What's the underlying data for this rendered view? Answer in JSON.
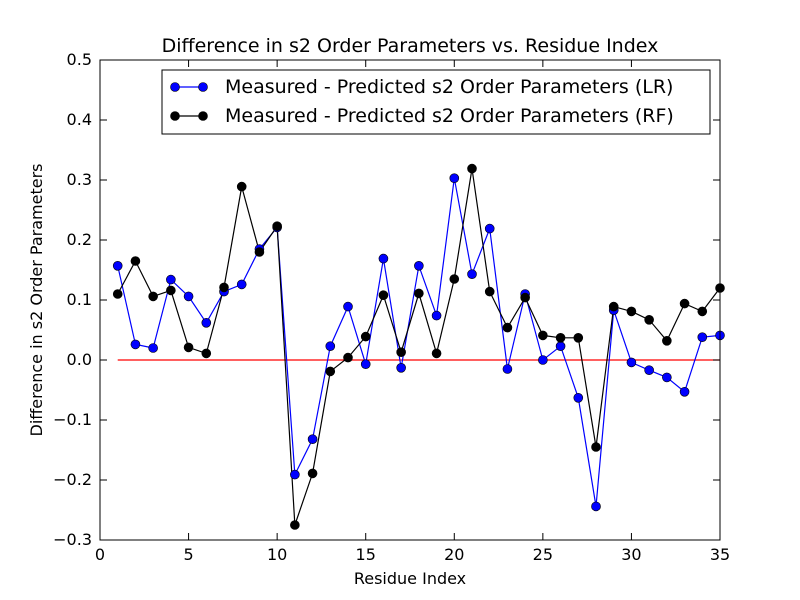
{
  "chart_data": {
    "type": "line",
    "title": "Difference in s2 Order Parameters vs. Residue Index",
    "xlabel": "Residue Index",
    "ylabel": "Difference in s2 Order Parameters",
    "xlim": [
      0,
      35
    ],
    "ylim": [
      -0.3,
      0.5
    ],
    "xticks": [
      0,
      5,
      10,
      15,
      20,
      25,
      30,
      35
    ],
    "yticks": [
      -0.3,
      -0.2,
      -0.1,
      0.0,
      0.1,
      0.2,
      0.3,
      0.4,
      0.5
    ],
    "xtick_labels": [
      "0",
      "5",
      "10",
      "15",
      "20",
      "25",
      "30",
      "35"
    ],
    "ytick_labels": [
      "−0.3",
      "−0.2",
      "−0.1",
      "0.0",
      "0.1",
      "0.2",
      "0.3",
      "0.4",
      "0.5"
    ],
    "grid": false,
    "legend_position": "top-right",
    "x": [
      1,
      2,
      3,
      4,
      5,
      6,
      7,
      8,
      9,
      10,
      11,
      12,
      13,
      14,
      15,
      16,
      17,
      18,
      19,
      20,
      21,
      22,
      23,
      24,
      25,
      26,
      27,
      28,
      29,
      30,
      31,
      32,
      33,
      34,
      35
    ],
    "series": [
      {
        "name": "Measured - Predicted s2 Order Parameters (LR)",
        "color": "#0000ff",
        "values": [
          0.157,
          0.026,
          0.02,
          0.134,
          0.106,
          0.062,
          0.114,
          0.126,
          0.185,
          0.221,
          -0.191,
          -0.132,
          0.023,
          0.089,
          -0.007,
          0.169,
          -0.013,
          0.157,
          0.074,
          0.303,
          0.143,
          0.219,
          -0.015,
          0.11,
          0.0,
          0.023,
          -0.063,
          -0.244,
          0.083,
          -0.004,
          -0.017,
          -0.029,
          -0.053,
          0.038,
          0.041
        ]
      },
      {
        "name": "Measured - Predicted s2 Order Parameters (RF)",
        "color": "#000000",
        "values": [
          0.11,
          0.165,
          0.106,
          0.116,
          0.021,
          0.011,
          0.121,
          0.289,
          0.18,
          0.223,
          -0.275,
          -0.189,
          -0.019,
          0.004,
          0.039,
          0.108,
          0.013,
          0.111,
          0.011,
          0.135,
          0.319,
          0.114,
          0.054,
          0.104,
          0.041,
          0.037,
          0.037,
          -0.145,
          0.089,
          0.081,
          0.067,
          0.032,
          0.094,
          0.081,
          0.12
        ]
      }
    ],
    "reference_line": {
      "y": 0.0,
      "x_start": 1,
      "x_end": 35,
      "color": "#ff0000"
    }
  }
}
